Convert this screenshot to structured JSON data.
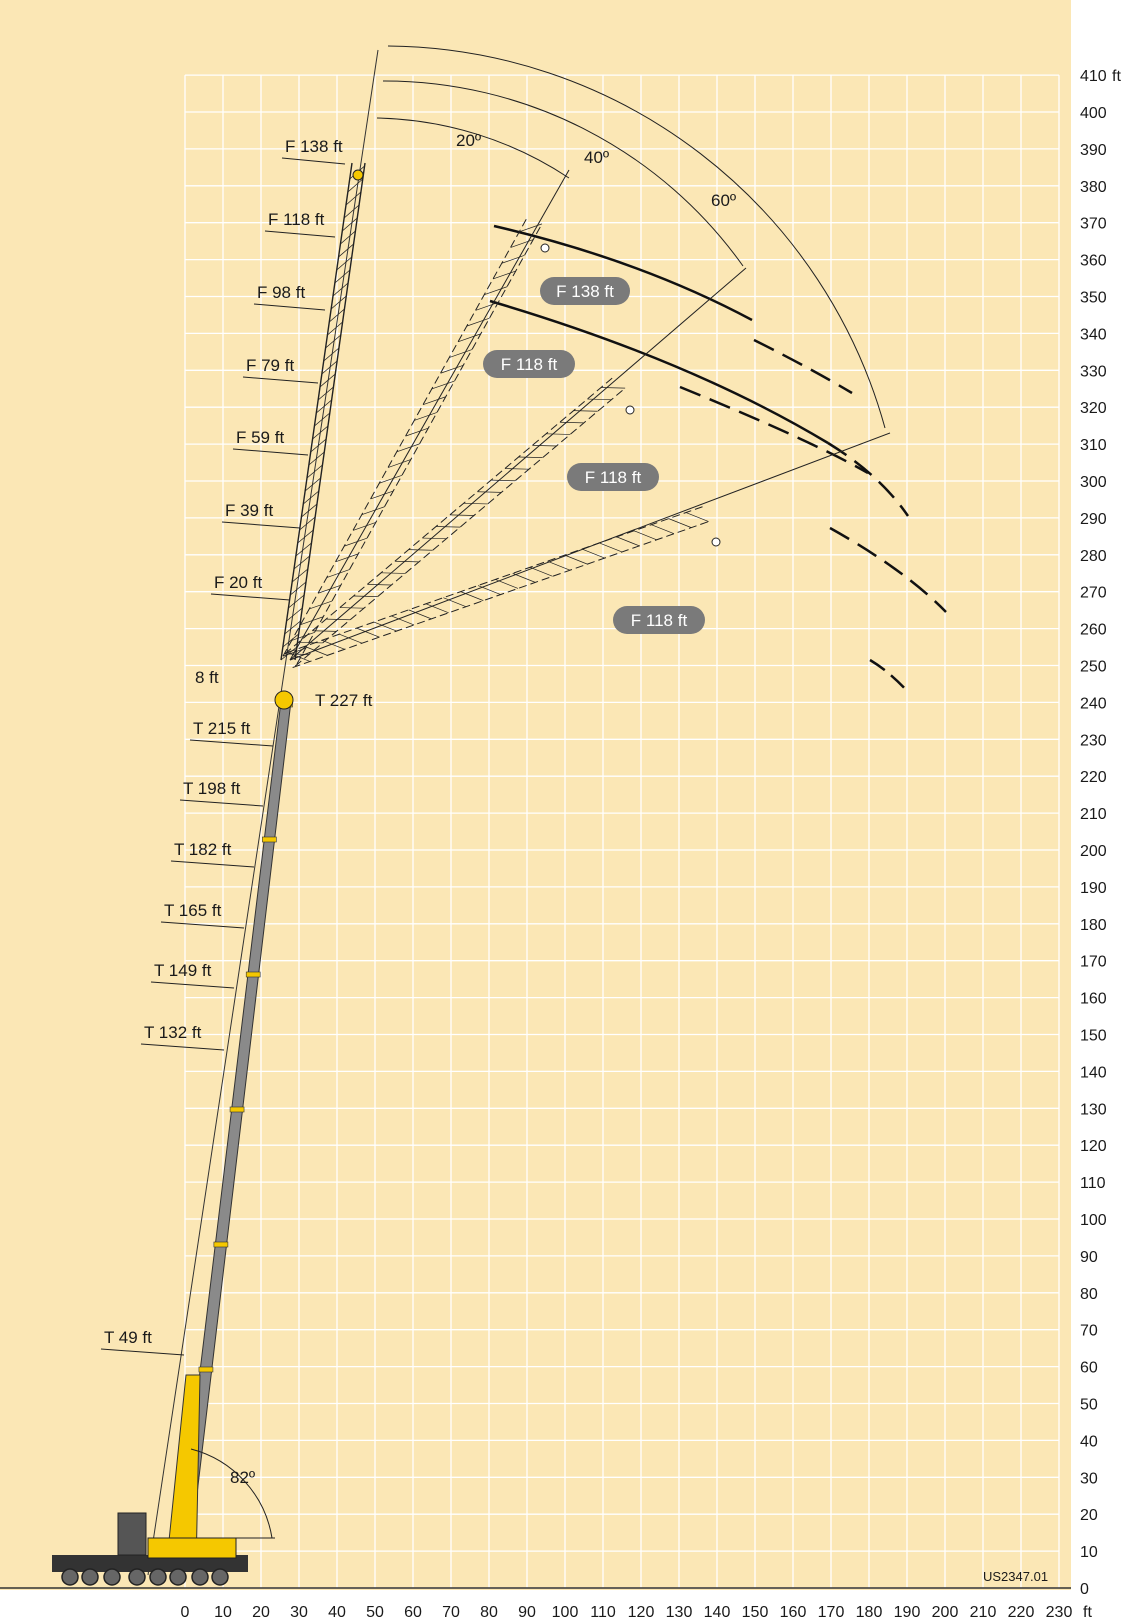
{
  "diagram": {
    "colors": {
      "background": "#fbe7b5",
      "grid": "#ffffff",
      "boom_grey": "#8a8a8a",
      "crane_yellow": "#f5c800",
      "pill": "#7a7a7a",
      "ink": "#1a1a1a"
    },
    "x_axis": {
      "ticks": [
        "0",
        "10",
        "20",
        "30",
        "40",
        "50",
        "60",
        "70",
        "80",
        "90",
        "100",
        "110",
        "120",
        "130",
        "140",
        "150",
        "160",
        "170",
        "180",
        "190",
        "200",
        "210",
        "220",
        "230"
      ],
      "unit": "ft"
    },
    "y_axis": {
      "ticks": [
        "0",
        "10",
        "20",
        "30",
        "40",
        "50",
        "60",
        "70",
        "80",
        "90",
        "100",
        "110",
        "120",
        "130",
        "140",
        "150",
        "160",
        "170",
        "180",
        "190",
        "200",
        "210",
        "220",
        "230",
        "240",
        "250",
        "260",
        "270",
        "280",
        "290",
        "300",
        "310",
        "320",
        "330",
        "340",
        "350",
        "360",
        "370",
        "380",
        "390",
        "400",
        "410"
      ],
      "unit": "ft"
    },
    "fly_jib_labels": [
      "F 138 ft",
      "F 118 ft",
      "F 98 ft",
      "F 79 ft",
      "F 59 ft",
      "F 39 ft",
      "F 20 ft"
    ],
    "spacer_label": "8 ft",
    "telescope_labels": [
      "T 215 ft",
      "T 198 ft",
      "T 182 ft",
      "T 165 ft",
      "T 149 ft",
      "T 132 ft",
      "T 49 ft"
    ],
    "telescope_top_label": "T 227 ft",
    "offset_angles": [
      "20º",
      "40º",
      "60º"
    ],
    "boom_angle": "82º",
    "jib_pills": [
      "F 138 ft",
      "F 118 ft",
      "F 118 ft",
      "F 118 ft"
    ],
    "drawing_code": "US2347.01"
  }
}
